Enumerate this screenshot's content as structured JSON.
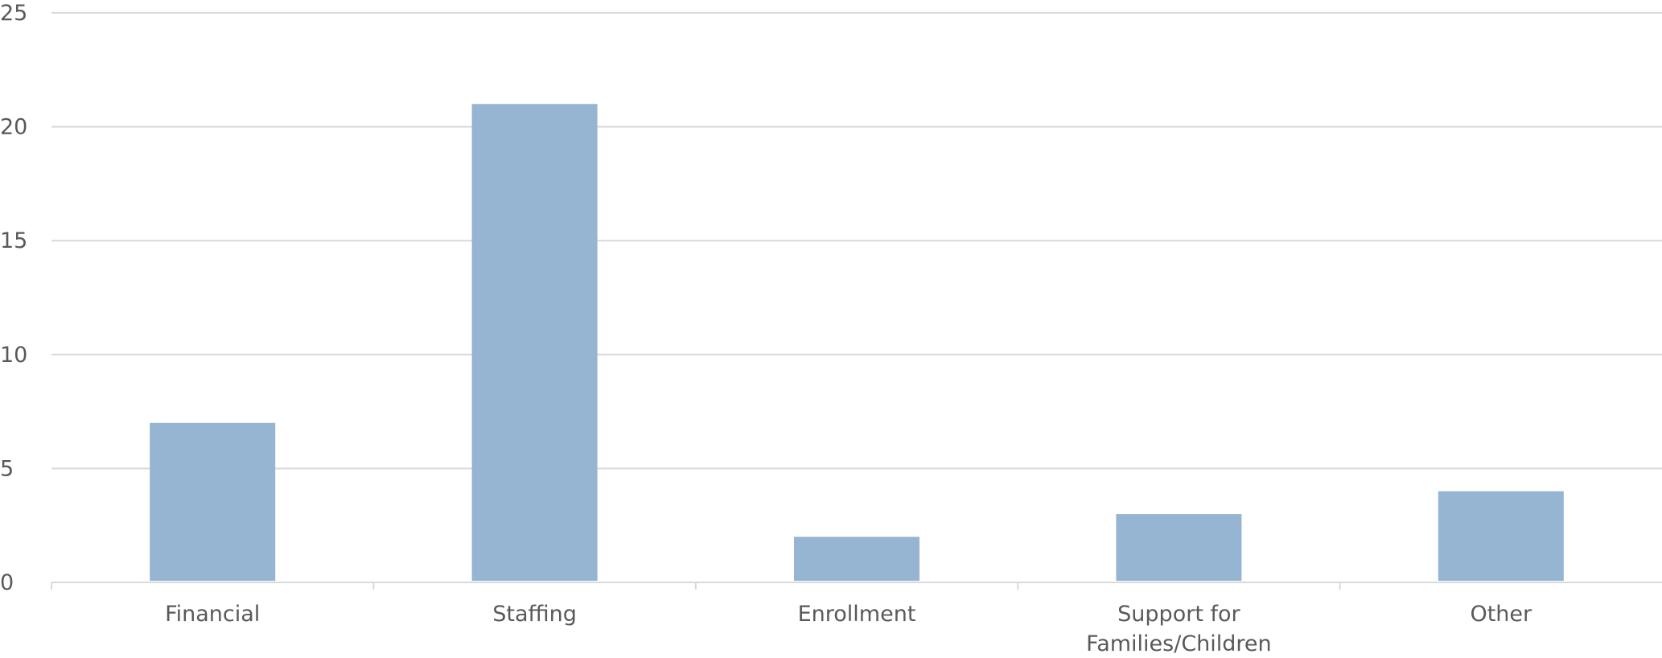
{
  "chart_data": {
    "type": "bar",
    "categories": [
      "Financial",
      "Staffing",
      "Enrollment",
      "Support for Families/Children",
      "Other"
    ],
    "category_lines": [
      [
        "Financial"
      ],
      [
        "Staffing"
      ],
      [
        "Enrollment"
      ],
      [
        "Support for",
        "Families/Children"
      ],
      [
        "Other"
      ]
    ],
    "values": [
      7,
      21,
      2,
      3,
      4
    ],
    "ylim": [
      0,
      25
    ],
    "yticks": [
      0,
      5,
      10,
      15,
      20,
      25
    ],
    "title": "",
    "xlabel": "",
    "ylabel": "",
    "grid": true,
    "legend": "none",
    "colors": {
      "bar": "#95b5d2",
      "grid": "#d9d9d9",
      "axis": "#d9d9d9",
      "text": "#595959"
    }
  }
}
